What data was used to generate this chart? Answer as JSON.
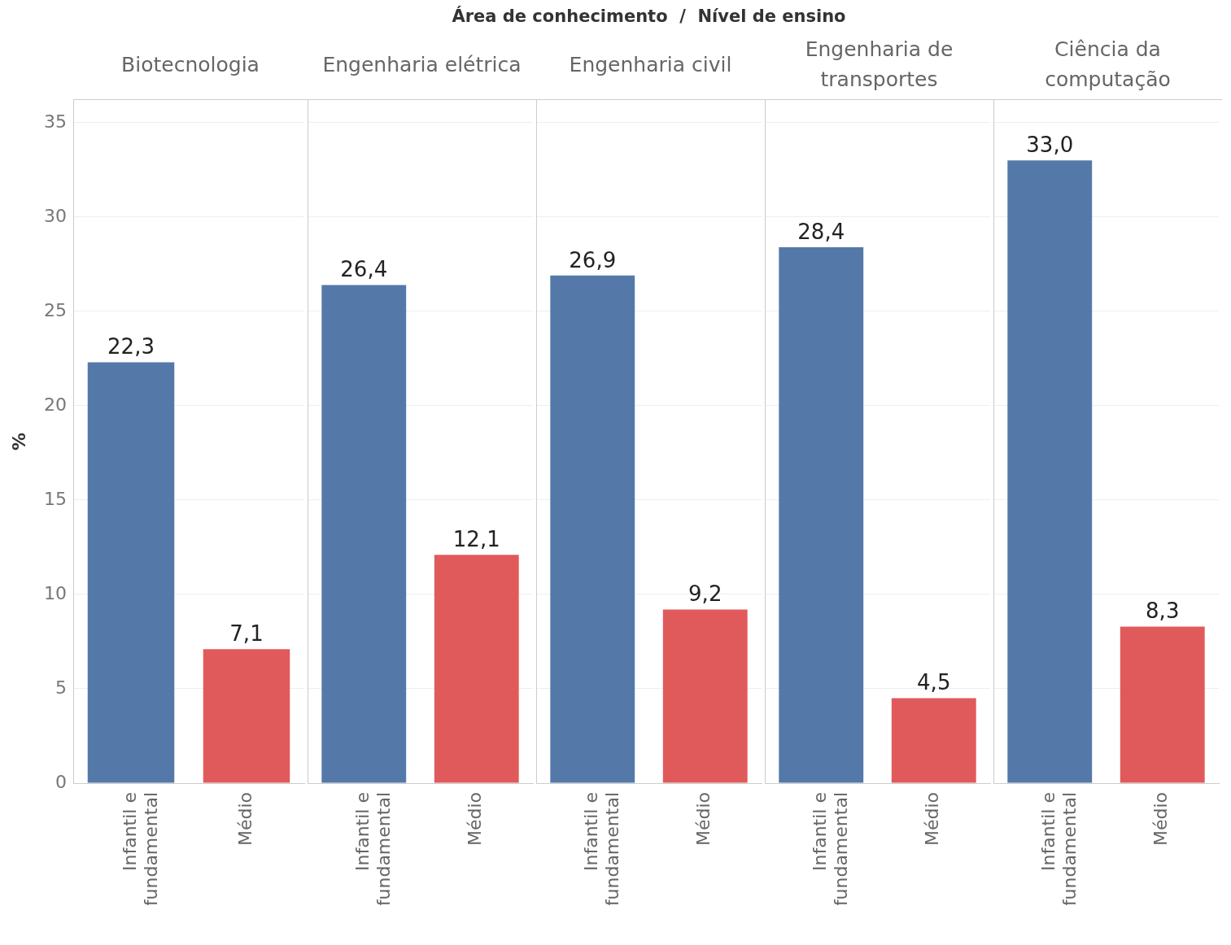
{
  "chart_data": [
    {
      "type": "bar",
      "title": "Biotecnologia",
      "annotations": [
        "Área de conhecimento  /  Nível de ensino"
      ],
      "ylabel": "%",
      "categories": [
        "Infantil e fundamental",
        "Médio"
      ],
      "values": [
        22.3,
        7.1
      ],
      "value_labels": [
        "22,3",
        "7,1"
      ],
      "colors": [
        "#5479a9",
        "#e15a5b"
      ],
      "ylim": [
        0,
        36.2
      ],
      "yticks": [
        0,
        5,
        10,
        15,
        20,
        25,
        30,
        35
      ],
      "grid": "y"
    },
    {
      "type": "bar",
      "title": "Engenharia elétrica",
      "categories": [
        "Infantil e fundamental",
        "Médio"
      ],
      "values": [
        26.4,
        12.1
      ],
      "value_labels": [
        "26,4",
        "12,1"
      ],
      "colors": [
        "#5479a9",
        "#e15a5b"
      ],
      "ylim": [
        0,
        36.2
      ],
      "yticks": [
        0,
        5,
        10,
        15,
        20,
        25,
        30,
        35
      ],
      "grid": "y",
      "tick_labels": "x"
    },
    {
      "type": "bar",
      "title": "Engenharia civil",
      "categories": [
        "Infantil e fundamental",
        "Médio"
      ],
      "values": [
        26.9,
        9.2
      ],
      "value_labels": [
        "26,9",
        "9,2"
      ],
      "colors": [
        "#5479a9",
        "#e15a5b"
      ],
      "ylim": [
        0,
        36.2
      ],
      "yticks": [
        0,
        5,
        10,
        15,
        20,
        25,
        30,
        35
      ],
      "grid": "y",
      "tick_labels": "x"
    },
    {
      "type": "bar",
      "title": "Engenharia de transportes",
      "categories": [
        "Infantil e fundamental",
        "Médio"
      ],
      "values": [
        28.4,
        4.5
      ],
      "value_labels": [
        "28,4",
        "4,5"
      ],
      "colors": [
        "#5479a9",
        "#e15a5b"
      ],
      "ylim": [
        0,
        36.2
      ],
      "yticks": [
        0,
        5,
        10,
        15,
        20,
        25,
        30,
        35
      ],
      "grid": "y",
      "tick_labels": "x"
    },
    {
      "type": "bar",
      "title": "Ciência da computação",
      "categories": [
        "Infantil e fundamental",
        "Médio"
      ],
      "values": [
        33.0,
        8.3
      ],
      "value_labels": [
        "33,0",
        "8,3"
      ],
      "colors": [
        "#5479a9",
        "#e15a5b"
      ],
      "ylim": [
        0,
        36.2
      ],
      "yticks": [
        0,
        5,
        10,
        15,
        20,
        25,
        30,
        35
      ],
      "grid": "y",
      "tick_labels": "x"
    }
  ]
}
